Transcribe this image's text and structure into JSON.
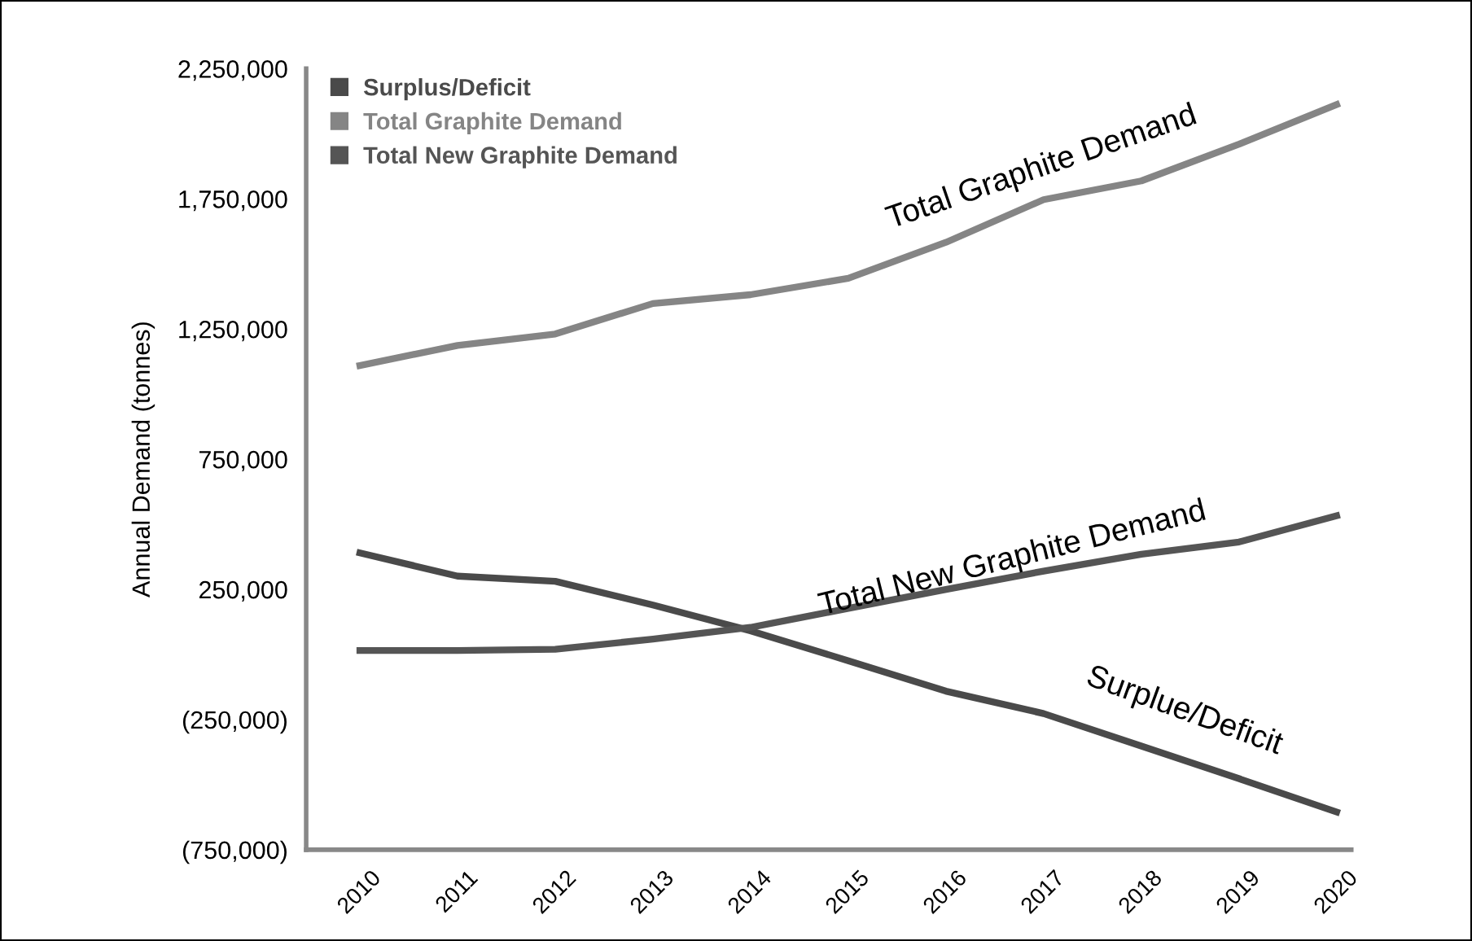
{
  "chart_data": {
    "type": "line",
    "ylabel": "Annual Demand (tonnes)",
    "categories": [
      "2010",
      "2011",
      "2012",
      "2013",
      "2014",
      "2015",
      "2016",
      "2017",
      "2018",
      "2019",
      "2020"
    ],
    "series": [
      {
        "name": "Surplus/Deficit",
        "color": "#4a4a4a",
        "values": [
          390000,
          301000,
          281000,
          190000,
          91000,
          -24000,
          -141000,
          -227000,
          -352000,
          -477000,
          -605000
        ]
      },
      {
        "name": "Total Graphite Demand",
        "color": "#858585",
        "values": [
          1110000,
          1187000,
          1231000,
          1348000,
          1382000,
          1445000,
          1583000,
          1747000,
          1819000,
          1960000,
          2112000
        ]
      },
      {
        "name": "Total New Graphite Demand",
        "color": "#555555",
        "values": [
          15000,
          15000,
          20000,
          59000,
          104000,
          177000,
          250000,
          320000,
          385000,
          432000,
          533000
        ]
      }
    ],
    "ylim": [
      -750000,
      2250000
    ],
    "yticks": [
      {
        "value": 2250000,
        "label": "2,250,000"
      },
      {
        "value": 1750000,
        "label": "1,750,000"
      },
      {
        "value": 1250000,
        "label": "1,250,000"
      },
      {
        "value": 750000,
        "label": "750,000"
      },
      {
        "value": 250000,
        "label": "250,000"
      },
      {
        "value": -250000,
        "label": "(250,000)"
      },
      {
        "value": -750000,
        "label": "(750,000)"
      }
    ],
    "annotations": [
      "Total Graphite Demand",
      "Total New Graphite Demand",
      "Surplue/Deficit"
    ],
    "grid": false,
    "legend": "top left",
    "marker": "none",
    "line_style": "solid"
  }
}
